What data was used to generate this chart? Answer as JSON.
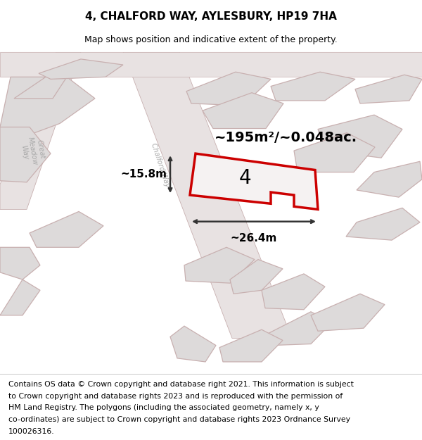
{
  "title_line1": "4, CHALFORD WAY, AYLESBURY, HP19 7HA",
  "title_line2": "Map shows position and indicative extent of the property.",
  "footer_lines": [
    "Contains OS data © Crown copyright and database right 2021. This information is subject",
    "to Crown copyright and database rights 2023 and is reproduced with the permission of",
    "HM Land Registry. The polygons (including the associated geometry, namely x, y",
    "co-ordinates) are subject to Crown copyright and database rights 2023 Ordnance Survey",
    "100026316."
  ],
  "area_text": "~195m²/~0.048ac.",
  "width_text": "~26.4m",
  "height_text": "~15.8m",
  "number_text": "4",
  "map_bg": "#f2eeee",
  "building_fill": "#dddada",
  "building_edge": "#c8b0b0",
  "road_fill": "#e8e2e2",
  "highlight_edge": "#cc0000",
  "highlight_fill": "#f5f2f2",
  "dim_color": "#333333",
  "street_color": "#aaaaaa",
  "title_fontsize": 11,
  "subtitle_fontsize": 9,
  "footer_fontsize": 7.8,
  "area_fontsize": 14,
  "number_fontsize": 20,
  "dim_fontsize": 11,
  "street_fontsize": 7
}
